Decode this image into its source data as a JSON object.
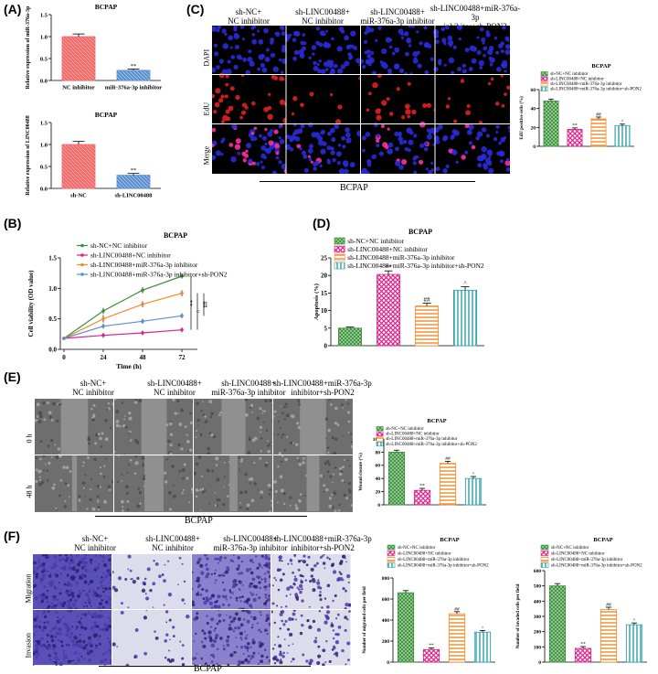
{
  "colors": {
    "green": "#3a8f3a",
    "pink": "#e0208a",
    "orange": "#f08a28",
    "teal": "#2aa0a8",
    "red_bar": "#f26a6a",
    "blue_bar": "#5a8fd0",
    "dapi": "#2a2ad8",
    "edu": "#e02020",
    "transwell": "#4a3aa8"
  },
  "panels": {
    "A": "(A)",
    "B": "(B)",
    "C": "(C)",
    "D": "(D)",
    "E": "(E)",
    "F": "(F)"
  },
  "common": {
    "bcpap": "BCPAP"
  },
  "C": {
    "col_labels": [
      "sh-NC+\nNC inhibitor",
      "sh-LINC00488+\nNC inhibitor",
      "sh-LINC00488+\nmiR-376a-3p inhibitor",
      "sh-LINC00488+miR-376a-3p\ninhibitor+sh-PON2"
    ],
    "row_labels": [
      "DAPI",
      "EdU",
      "Merge"
    ],
    "bottom_label": "BCPAP"
  },
  "E": {
    "col_labels": [
      "sh-NC+\nNC inhibitor",
      "sh-LINC00488+\nNC inhibitor",
      "sh-LINC00488+\nmiR-376a-3p inhibitor",
      "sh-LINC00488+miR-376a-3p\ninhibitor+sh-PON2"
    ],
    "row_labels": [
      "0 h",
      "48 h"
    ],
    "bottom_label": "BCPAP"
  },
  "F": {
    "col_labels": [
      "sh-NC+\nNC inhibitor",
      "sh-LINC00488+\nNC inhibitor",
      "sh-LINC00488+\nmiR-376a-3p inhibitor",
      "sh-LINC00488+miR-376a-3p\ninhibitor+sh-PON2"
    ],
    "row_labels": [
      "Migration",
      "Invasion"
    ],
    "bottom_label": "BCPAP"
  },
  "chart_data": [
    {
      "id": "A1",
      "type": "bar",
      "title": "BCPAP",
      "categories": [
        "NC inhibitor",
        "miR-376a-3p inhibitor"
      ],
      "values": [
        1.0,
        0.23
      ],
      "errors": [
        0.06,
        0.03
      ],
      "ylabel": "Relative expression of miR-376a-3p",
      "ylim": [
        0,
        1.5
      ],
      "yticks": [
        0.0,
        0.5,
        1.0,
        1.5
      ],
      "annotations": [
        "",
        "**"
      ]
    },
    {
      "id": "A2",
      "type": "bar",
      "title": "BCPAP",
      "categories": [
        "sh-NC",
        "sh-LINC00488"
      ],
      "values": [
        1.0,
        0.3
      ],
      "errors": [
        0.07,
        0.04
      ],
      "ylabel": "Relative expression of LINC00488",
      "ylim": [
        0,
        1.5
      ],
      "yticks": [
        0.0,
        0.5,
        1.0,
        1.5
      ],
      "annotations": [
        "",
        "**"
      ]
    },
    {
      "id": "B",
      "type": "line",
      "title": "BCPAP",
      "x": [
        0,
        24,
        48,
        72
      ],
      "series": [
        {
          "name": "sh-NC+NC inhibitor",
          "values": [
            0.18,
            0.63,
            0.97,
            1.2
          ]
        },
        {
          "name": "sh-LINC00488+NC inhibitor",
          "values": [
            0.18,
            0.23,
            0.27,
            0.32
          ]
        },
        {
          "name": "sh-LINC00488+miR-376a-3p inhibitor",
          "values": [
            0.18,
            0.5,
            0.74,
            0.92
          ]
        },
        {
          "name": "sh-LINC00488+miR-376a-3p inhibitor+sh-PON2",
          "values": [
            0.18,
            0.38,
            0.46,
            0.55
          ]
        }
      ],
      "xlabel": "Time (h)",
      "ylabel": "Cell viability (OD value)",
      "xlim": [
        0,
        72
      ],
      "ylim": [
        0,
        1.5
      ],
      "xticks": [
        0,
        24,
        48,
        72
      ],
      "yticks": [
        0.0,
        0.5,
        1.0,
        1.5
      ],
      "sig_marks": [
        "**",
        "^",
        "##"
      ]
    },
    {
      "id": "C",
      "type": "bar",
      "title": "BCPAP",
      "categories": [
        "sh-NC+NC inhibitor",
        "sh-LINC00488+NC inhibitor",
        "sh-LINC00488+miR-376a-3p inhibitor",
        "sh-LINC00488+miR-376a-3p inhibitor+sh-PON2"
      ],
      "values": [
        48,
        18,
        29,
        22
      ],
      "errors": [
        2,
        1.5,
        2,
        1.5
      ],
      "ylabel": "EdU positive cells (%)",
      "ylim": [
        0,
        60
      ],
      "yticks": [
        0,
        20,
        40,
        60
      ],
      "annotations": [
        "",
        "**",
        "##",
        "^"
      ]
    },
    {
      "id": "D",
      "type": "bar",
      "title": "BCPAP",
      "categories": [
        "sh-NC+NC inhibitor",
        "sh-LINC00488+NC inhibitor",
        "sh-LINC00488+miR-376a-3p inhibitor",
        "sh-LINC00488+miR-376a-3p inhibitor+sh-PON2"
      ],
      "values": [
        5,
        20.3,
        11.3,
        15.8
      ],
      "errors": [
        0.3,
        1.0,
        0.8,
        1.0
      ],
      "ylabel": "Apoptosis (%)",
      "ylim": [
        0,
        25
      ],
      "yticks": [
        0,
        5,
        10,
        15,
        20,
        25
      ],
      "annotations": [
        "",
        "**",
        "##",
        "^"
      ]
    },
    {
      "id": "E",
      "type": "bar",
      "title": "BCPAP",
      "categories": [
        "sh-NC+NC inhibitor",
        "sh-LINC00488+NC inhibitor",
        "sh-LINC00488+miR-376a-3p inhibitor",
        "sh-LINC00488+miR-376a-3p inhibitor+sh-PON2"
      ],
      "values": [
        80,
        22,
        63,
        40
      ],
      "errors": [
        3,
        3,
        3,
        3
      ],
      "ylabel": "Wound closure (%)",
      "ylim": [
        0,
        100
      ],
      "yticks": [
        0,
        20,
        40,
        60,
        80,
        100
      ],
      "annotations": [
        "",
        "**",
        "##",
        "^"
      ]
    },
    {
      "id": "F1",
      "type": "bar",
      "title": "BCPAP",
      "categories": [
        "sh-NC+NC inhibitor",
        "sh-LINC00488+NC inhibitor",
        "sh-LINC00488+miR-376a-3p inhibitor",
        "sh-LINC00488+miR-376a-3p inhibitor+sh-PON2"
      ],
      "values": [
        660,
        120,
        460,
        285
      ],
      "errors": [
        20,
        15,
        20,
        15
      ],
      "ylabel": "Number of migrated cells per field",
      "ylim": [
        0,
        800
      ],
      "yticks": [
        0,
        200,
        400,
        600,
        800
      ],
      "annotations": [
        "",
        "**",
        "##",
        "^"
      ]
    },
    {
      "id": "F2",
      "type": "bar",
      "title": "BCPAP",
      "categories": [
        "sh-NC+NC inhibitor",
        "sh-LINC00488+NC inhibitor",
        "sh-LINC00488+miR-376a-3p inhibitor",
        "sh-LINC00488+miR-376a-3p inhibitor+sh-PON2"
      ],
      "values": [
        500,
        90,
        345,
        245
      ],
      "errors": [
        15,
        12,
        15,
        12
      ],
      "ylabel": "Number of invaded cells per field",
      "ylim": [
        0,
        600
      ],
      "yticks": [
        0,
        100,
        200,
        300,
        400,
        500,
        600
      ],
      "annotations": [
        "",
        "**",
        "##",
        "^"
      ]
    }
  ]
}
